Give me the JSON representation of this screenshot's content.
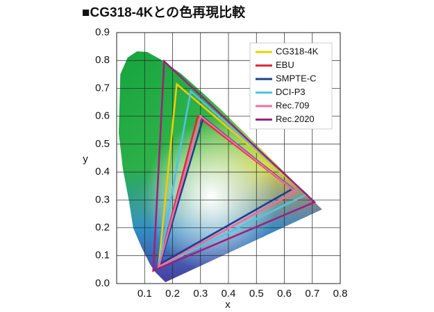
{
  "chart_data": {
    "type": "polygon",
    "title": "■CG318-4Kとの色再現比較",
    "xlabel": "x",
    "ylabel": "y",
    "xlim": [
      0,
      0.8
    ],
    "ylim": [
      0,
      0.9
    ],
    "xticks": [
      0.1,
      0.2,
      0.3,
      0.4,
      0.5,
      0.6,
      0.7,
      0.8
    ],
    "yticks": [
      {
        "value": 0,
        "label": "0.0"
      },
      0.1,
      0.2,
      0.3,
      0.4,
      0.5,
      0.6,
      0.7,
      0.8,
      0.9
    ],
    "grid": true,
    "legend": "upper right",
    "series": [
      {
        "name": "CG318-4K",
        "color": "#f2cc00",
        "x": [
          0.68,
          0.215,
          0.15
        ],
        "y": [
          0.32,
          0.715,
          0.06
        ]
      },
      {
        "name": "EBU",
        "color": "#e0283c",
        "x": [
          0.64,
          0.29,
          0.15
        ],
        "y": [
          0.33,
          0.6,
          0.06
        ]
      },
      {
        "name": "SMPTE-C",
        "color": "#1f3c8c",
        "x": [
          0.63,
          0.31,
          0.155
        ],
        "y": [
          0.34,
          0.595,
          0.07
        ]
      },
      {
        "name": "DCI-P3",
        "color": "#4fc3e8",
        "x": [
          0.68,
          0.265,
          0.15
        ],
        "y": [
          0.32,
          0.69,
          0.06
        ]
      },
      {
        "name": "Rec.709",
        "color": "#f06ea0",
        "x": [
          0.64,
          0.3,
          0.15
        ],
        "y": [
          0.33,
          0.6,
          0.06
        ]
      },
      {
        "name": "Rec.2020",
        "color": "#a0207a",
        "x": [
          0.708,
          0.17,
          0.131
        ],
        "y": [
          0.292,
          0.797,
          0.046
        ]
      }
    ]
  }
}
